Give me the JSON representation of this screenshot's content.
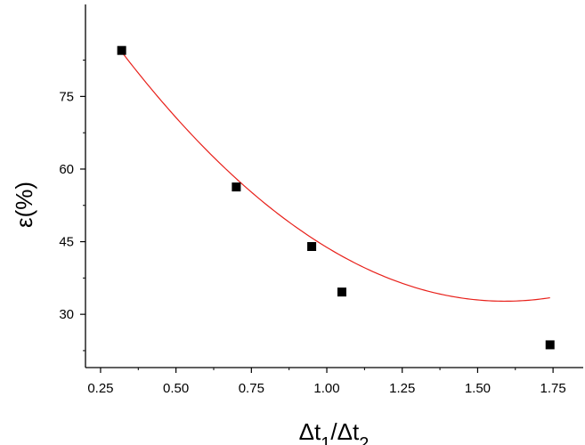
{
  "chart_data": {
    "type": "scatter",
    "title": "",
    "xlabel": {
      "base1": "Δt",
      "sub1": "1",
      "sep": "/Δt",
      "sub2": "2"
    },
    "ylabel": "ε(%)",
    "xlim": [
      0.2,
      1.85
    ],
    "ylim": [
      19,
      94
    ],
    "x_ticks": [
      0.25,
      0.5,
      0.75,
      1.0,
      1.25,
      1.5,
      1.75
    ],
    "x_tick_labels": [
      "0.25",
      "0.50",
      "0.75",
      "1.00",
      "1.25",
      "1.50",
      "1.75"
    ],
    "y_ticks": [
      30,
      45,
      60,
      75
    ],
    "y_tick_labels": [
      "30",
      "45",
      "60",
      "75"
    ],
    "grid": false,
    "series": [
      {
        "kind": "points",
        "marker": "square",
        "color": "#000000",
        "x": [
          0.32,
          0.7,
          0.95,
          1.05,
          1.74
        ],
        "y": [
          84.5,
          56.3,
          44.0,
          34.6,
          23.7
        ]
      },
      {
        "kind": "fit",
        "curve": "quadratic",
        "color": "#e8201a",
        "x_range": [
          0.32,
          1.74
        ],
        "coefficients": [
          113.4,
          -101.47,
          31.9
        ]
      }
    ]
  }
}
